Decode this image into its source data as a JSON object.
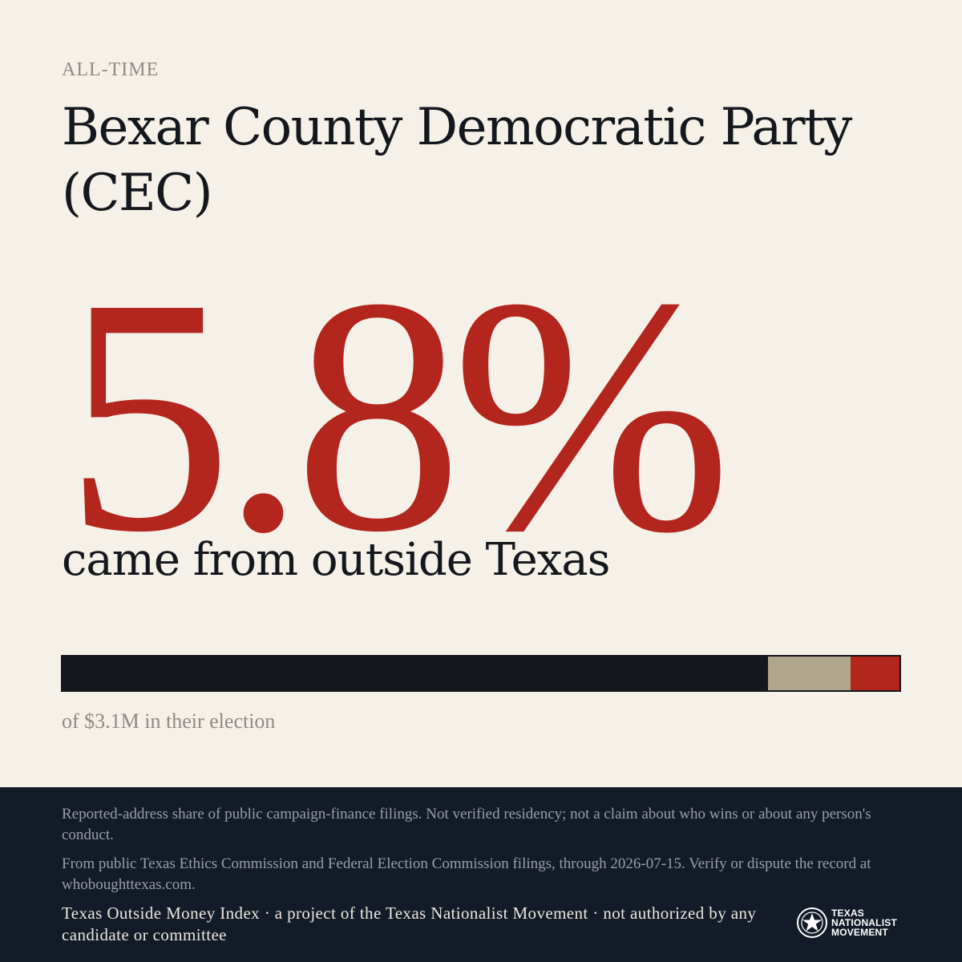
{
  "kicker": "ALL-TIME",
  "title": "Bexar County Democratic Party (CEC)",
  "headline_value": "5.8%",
  "headline_sub": "came from outside Texas",
  "breakdown": {
    "caption": "of $3.1M in their election",
    "segments": [
      {
        "fraction": 0.843,
        "color": "#14181d"
      },
      {
        "fraction": 0.099,
        "color": "#b0a68c"
      },
      {
        "fraction": 0.058,
        "color": "#b3261e"
      }
    ]
  },
  "footer": {
    "disclaimer": "Reported-address share of public campaign-finance filings. Not verified residency; not a claim about who wins or about any person's conduct.",
    "source": "From public Texas Ethics Commission and Federal Election Commission filings, through 2026-07-15. Verify or dispute the record at whoboughttexas.com.",
    "credit": "Texas Outside Money Index · a project of the Texas Nationalist Movement · not authorized by any candidate or committee",
    "logo_lines": [
      "TEXAS",
      "NATIONALIST",
      "MOVEMENT"
    ]
  },
  "colors": {
    "background": "#f5f0e8",
    "accent_red": "#b3261e",
    "ink": "#14181d",
    "footer_bg": "#121b27"
  }
}
